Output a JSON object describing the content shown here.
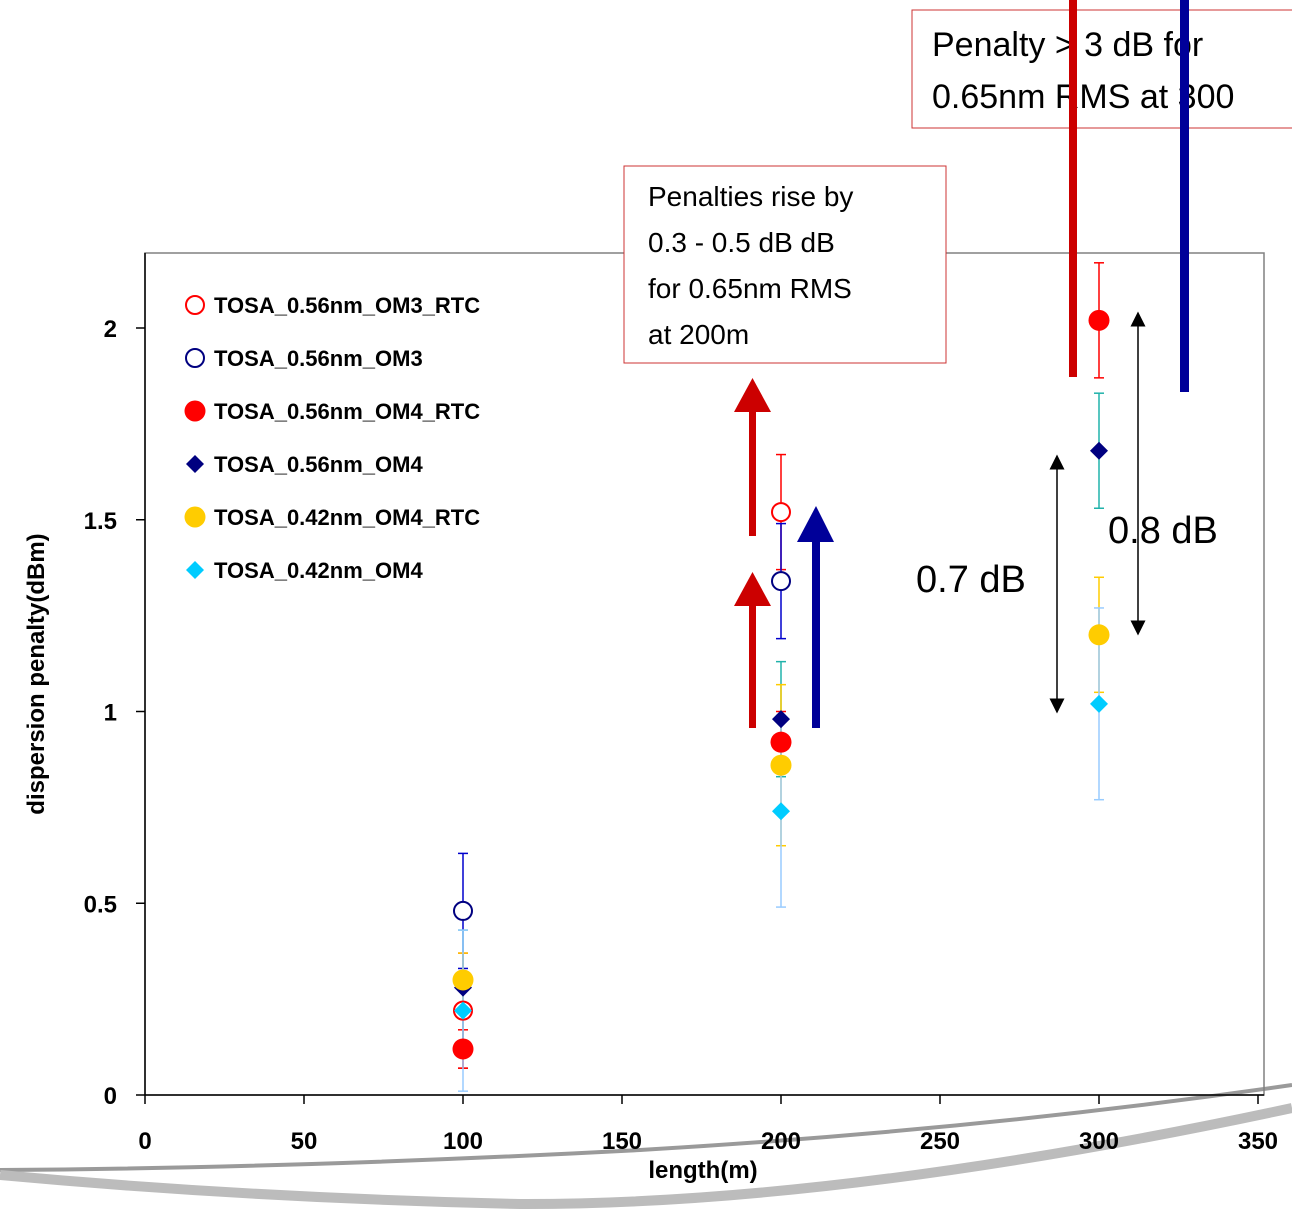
{
  "chart_data": {
    "type": "scatter",
    "xlabel": "length(m)",
    "ylabel": "dispersion penalty(dBm)",
    "xlim": [
      0,
      350
    ],
    "ylim": [
      0,
      2.2
    ],
    "x_ticks": [
      "0",
      "50",
      "100",
      "150",
      "200",
      "250",
      "300",
      "350"
    ],
    "y_ticks": [
      "0",
      "0.5",
      "1",
      "1.5",
      "2"
    ],
    "grid": false,
    "legend_position": "top-left",
    "series": [
      {
        "name": "TOSA_0.56nm_OM3_RTC",
        "marker": "open-circle",
        "color": "#ff0000",
        "error_color": "#ff0000",
        "points": [
          {
            "x": 100,
            "y": 0.22,
            "err": 0.15
          },
          {
            "x": 200,
            "y": 1.52,
            "err": 0.15
          }
        ]
      },
      {
        "name": "TOSA_0.56nm_OM3",
        "marker": "open-circle",
        "color": "#000080",
        "error_color": "#0000cc",
        "points": [
          {
            "x": 100,
            "y": 0.48,
            "err": 0.15
          },
          {
            "x": 200,
            "y": 1.34,
            "err": 0.15
          }
        ]
      },
      {
        "name": "TOSA_0.56nm_OM4_RTC",
        "marker": "filled-circle",
        "color": "#ff0000",
        "error_color": "#ff0000",
        "points": [
          {
            "x": 100,
            "y": 0.12,
            "err": 0.05
          },
          {
            "x": 200,
            "y": 0.92,
            "err": 0.08
          },
          {
            "x": 300,
            "y": 2.02,
            "err": 0.15
          }
        ]
      },
      {
        "name": "TOSA_0.56nm_OM4",
        "marker": "diamond",
        "color": "#000080",
        "error_color": "#20b2aa",
        "points": [
          {
            "x": 100,
            "y": 0.28,
            "err": 0.15
          },
          {
            "x": 200,
            "y": 0.98,
            "err": 0.15
          },
          {
            "x": 300,
            "y": 1.68,
            "err": 0.15
          }
        ]
      },
      {
        "name": "TOSA_0.42nm_OM4_RTC",
        "marker": "filled-circle",
        "color": "#ffcc00",
        "error_color": "#ffcc00",
        "points": [
          {
            "x": 100,
            "y": 0.3,
            "err": 0.07
          },
          {
            "x": 200,
            "y": 0.86,
            "err": 0.21
          },
          {
            "x": 300,
            "y": 1.2,
            "err": 0.15
          }
        ]
      },
      {
        "name": "TOSA_0.42nm_OM4",
        "marker": "diamond",
        "color": "#00ccff",
        "error_color": "#99ccff",
        "points": [
          {
            "x": 100,
            "y": 0.22,
            "err": 0.21
          },
          {
            "x": 200,
            "y": 0.74,
            "err": 0.25
          },
          {
            "x": 300,
            "y": 1.02,
            "err": 0.25
          }
        ]
      }
    ],
    "annotations": {
      "box_200m": [
        "Penalties rise by",
        "0.3 - 0.5 dB dB",
        "for 0.65nm RMS",
        "at 200m"
      ],
      "box_300m": [
        "Penalty > 3 dB for",
        "0.65nm RMS at 300"
      ],
      "label_07": "0.7 dB",
      "label_08": "0.8 dB"
    },
    "colors": {
      "red_arrow": "#cc0000",
      "blue_arrow": "#000099",
      "box_border": "#cc3333"
    }
  }
}
